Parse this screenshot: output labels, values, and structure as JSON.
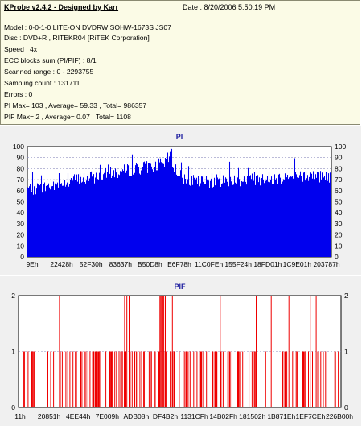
{
  "info": {
    "title": "KProbe v2.4.2 - Designed by Karr",
    "date": "Date : 8/20/2006 5:50:19 PM",
    "lines": [
      "Model : 0-0-1-0 LITE-ON DVDRW SOHW-1673S JS07",
      "Disc : DVD+R , RITEKR04 [RiTEK Corporation]",
      "Speed : 4x",
      "ECC blocks sum (PI/PIF) : 8/1",
      "Scanned range : 0 - 2293755",
      "Sampling count : 131711",
      "Errors : 0",
      "PI Max= 103 , Average= 59.33 , Total= 986357",
      "PIF Max= 2 , Average= 0.07 , Total= 1108"
    ]
  },
  "colors": {
    "pi": "#0000ee",
    "pif": "#ee0000",
    "plot_bg": "#ffffff",
    "panel_bg": "#f0f0f0",
    "info_bg": "#fbfbe6"
  },
  "chart_data": [
    {
      "type": "bar",
      "title": "PI",
      "xlabel": "",
      "ylabel": "",
      "ylim": [
        0,
        100
      ],
      "yticks": [
        "0",
        "10",
        "20",
        "30",
        "40",
        "50",
        "60",
        "70",
        "80",
        "90",
        "100"
      ],
      "x_tick_labels": [
        "9Eh",
        "22428h",
        "52F30h",
        "83637h",
        "B50D8h",
        "E6F78h",
        "11C0FEh",
        "155F24h",
        "18FD01h",
        "1C9E01h",
        "203787h"
      ],
      "grid": "dashed horizontal",
      "profile": [
        [
          0,
          62
        ],
        [
          0.04,
          62
        ],
        [
          0.1,
          66
        ],
        [
          0.16,
          70
        ],
        [
          0.22,
          72
        ],
        [
          0.28,
          76
        ],
        [
          0.34,
          79
        ],
        [
          0.38,
          81
        ],
        [
          0.42,
          83
        ],
        [
          0.45,
          84
        ],
        [
          0.47,
          92
        ],
        [
          0.48,
          83
        ],
        [
          0.5,
          74
        ],
        [
          0.52,
          70
        ],
        [
          0.56,
          68
        ],
        [
          0.62,
          69
        ],
        [
          0.7,
          70
        ],
        [
          0.78,
          71
        ],
        [
          0.86,
          72
        ],
        [
          0.94,
          73
        ],
        [
          1,
          73
        ]
      ],
      "max": 103,
      "average": 59.33
    },
    {
      "type": "bar",
      "title": "PIF",
      "xlabel": "",
      "ylabel": "",
      "ylim": [
        0,
        2
      ],
      "yticks": [
        "0",
        "1",
        "2"
      ],
      "x_tick_labels": [
        "11h",
        "20851h",
        "4EE44h",
        "7E009h",
        "ADB08h",
        "DF4B2h",
        "1131CFh",
        "14B02Fh",
        "181502h",
        "1B871Eh",
        "1EF7CEh",
        "226B00h"
      ],
      "grid": "dashed horizontal",
      "max": 2,
      "average": 0.07,
      "spikes_value_2": [
        0.125,
        0.328,
        0.335,
        0.342,
        0.438,
        0.441,
        0.444,
        0.447,
        0.45,
        0.455,
        0.477,
        0.626,
        0.738,
        0.785,
        0.84,
        0.908,
        0.925
      ]
    }
  ]
}
